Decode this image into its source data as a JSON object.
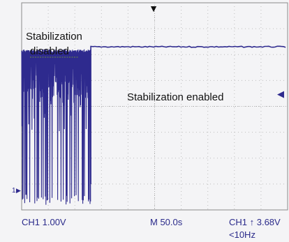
{
  "chart_data": {
    "type": "line",
    "annotations": {
      "disabled_line1": "Stabilization",
      "disabled_line2": "disabled",
      "enabled": "Stabilization enabled"
    },
    "ch1_marker": "1",
    "status": {
      "channel_scale": "CH1  1.00V",
      "timebase": "M 50.0s",
      "trigger": "CH1 ↑ 3.68V",
      "trigger_freq": "<10Hz"
    },
    "grid": true,
    "divisions": {
      "x": 10,
      "y": 8
    },
    "volts_per_div": 1.0,
    "seconds_per_div": 50,
    "x_range_s": [
      0,
      500
    ],
    "y_range_div": [
      -4,
      4
    ],
    "signal": {
      "disabled_segment": {
        "t_start_s": 0,
        "t_end_s": 130,
        "high_div": 2.15,
        "low_div_min": -3.8
      },
      "enabled_segment": {
        "t_start_s": 130,
        "t_end_s": 500,
        "level_div": 2.3
      }
    },
    "trace_color": "#2e2a8e"
  }
}
